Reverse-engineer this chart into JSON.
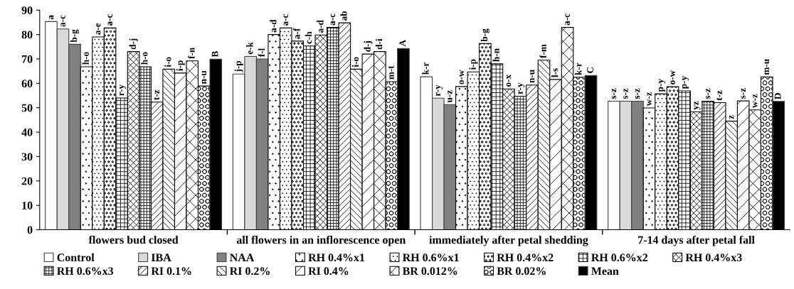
{
  "chart_data": {
    "type": "bar",
    "categories": [
      "flowers bud closed",
      "all flowers in an inflorescence open",
      "immediately after petal shedding",
      "7-14 days after petal fall"
    ],
    "ylim": [
      0,
      90
    ],
    "yticks": [
      0,
      10,
      20,
      30,
      40,
      50,
      60,
      70,
      80,
      90
    ],
    "grid": false,
    "legend": "bottom",
    "series": [
      {
        "name": "Control",
        "color": "#ffffff",
        "values": [
          85.3,
          63.8,
          62.7,
          52.7
        ],
        "value_labels": [
          "a",
          "j-p",
          "k-r",
          "s-z"
        ]
      },
      {
        "name": "IBA",
        "color": "#d9d9d9",
        "values": [
          82.3,
          71,
          53.9,
          52.7
        ],
        "value_labels": [
          "a-c",
          "e-k",
          "r-y",
          "s-z"
        ]
      },
      {
        "name": "NAA",
        "color": "#808080",
        "values": [
          76,
          70,
          51.3,
          52.7
        ],
        "value_labels": [
          "b-g",
          "f-l",
          "u-z",
          "s-z"
        ]
      },
      {
        "name": "RH 0.4%x1",
        "color": "#000000",
        "values": [
          66.8,
          80,
          58.7,
          49.9
        ],
        "value_labels": [
          "h-o",
          "a-d",
          "o-w",
          "w-z"
        ]
      },
      {
        "name": "RH 0.6%x1",
        "color": "#000000",
        "values": [
          79,
          82.7,
          64.7,
          55.7
        ],
        "value_labels": [
          "a-e",
          "a-c",
          "i-p",
          "p-y"
        ]
      },
      {
        "name": "RH 0.4%x2",
        "color": "#000000",
        "values": [
          82.7,
          77.3,
          76.3,
          58.6
        ],
        "value_labels": [
          "a-c",
          "a-f",
          "b-g",
          "o-w"
        ]
      },
      {
        "name": "RH 0.6%x2",
        "color": "#000000",
        "values": [
          54,
          75.3,
          68,
          56.9
        ],
        "value_labels": [
          "r-y",
          "c-h",
          "h-n",
          "p-y"
        ]
      },
      {
        "name": "RH 0.4%x3",
        "color": "#000000",
        "values": [
          73,
          79.8,
          57.7,
          48.3
        ],
        "value_labels": [
          "d-j",
          "a-d",
          "o-x",
          "yz"
        ]
      },
      {
        "name": "RH 0.6%x3",
        "color": "#000000",
        "values": [
          66.8,
          82.9,
          54.7,
          52.7
        ],
        "value_labels": [
          "h-o",
          "a-c",
          "r-y",
          "s-z"
        ]
      },
      {
        "name": "RI 0.1%",
        "color": "#000000",
        "values": [
          52.3,
          84.8,
          59.3,
          52.1
        ],
        "value_labels": [
          "t-z",
          "ab",
          "n-u",
          "t-z"
        ]
      },
      {
        "name": "RI 0.2%",
        "color": "#000000",
        "values": [
          65.8,
          65.8,
          69.5,
          44.5
        ],
        "value_labels": [
          "i-o",
          "i-o",
          "f-m",
          "z"
        ]
      },
      {
        "name": "RI 0.4%",
        "color": "#000000",
        "values": [
          64.2,
          72,
          61.6,
          52.8
        ],
        "value_labels": [
          "i-p",
          "d-j",
          "l-s",
          "s-z"
        ]
      },
      {
        "name": "BR 0.012%",
        "color": "#000000",
        "values": [
          69.2,
          73,
          82.9,
          49.1
        ],
        "value_labels": [
          "f-n",
          "d-i",
          "a-c",
          "w-z"
        ]
      },
      {
        "name": "BR 0.02%",
        "color": "#000000",
        "values": [
          58.9,
          60.7,
          62.5,
          62.6
        ],
        "value_labels": [
          "n-u",
          "m-t",
          "k-r",
          "m-u"
        ]
      },
      {
        "name": "Mean",
        "color": "#000000",
        "values": [
          69.9,
          74.3,
          63.2,
          52.6
        ],
        "value_labels": [
          "B",
          "A",
          "C",
          "D"
        ]
      }
    ]
  }
}
